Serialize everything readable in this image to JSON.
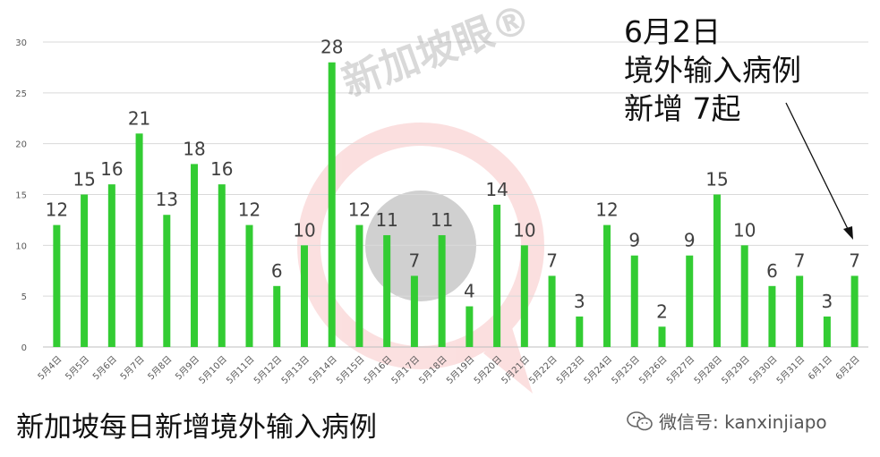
{
  "annotation": {
    "line1": "6月2日",
    "line2": "境外输入病例",
    "line3": "新增 7起"
  },
  "watermark": {
    "text": "新加坡眼®"
  },
  "footer": {
    "title": "新加坡每日新增境外输入病例",
    "wechat_label": "微信号: kanxinjiapo"
  },
  "colors": {
    "bar": "#33cc33",
    "grid": "#d9d9d9",
    "watermark_ring": "#f4a6a6"
  },
  "chart_data": {
    "type": "bar",
    "title": "",
    "xlabel": "",
    "ylabel": "",
    "ylim": [
      0,
      30
    ],
    "yticks": [
      0,
      5,
      10,
      15,
      20,
      25,
      30
    ],
    "grid": true,
    "categories": [
      "5月4日",
      "5月5日",
      "5月6日",
      "5月7日",
      "5月8日",
      "5月9日",
      "5月10日",
      "5月11日",
      "5月12日",
      "5月13日",
      "5月14日",
      "5月15日",
      "5月16日",
      "5月17日",
      "5月18日",
      "5月19日",
      "5月20日",
      "5月21日",
      "5月22日",
      "5月23日",
      "5月24日",
      "5月25日",
      "5月26日",
      "5月27日",
      "5月28日",
      "5月29日",
      "5月30日",
      "5月31日",
      "6月1日",
      "6月2日"
    ],
    "values": [
      12,
      15,
      16,
      21,
      13,
      18,
      16,
      12,
      6,
      10,
      28,
      12,
      11,
      7,
      11,
      4,
      14,
      10,
      7,
      3,
      12,
      9,
      2,
      9,
      15,
      10,
      6,
      7,
      3,
      7
    ]
  }
}
